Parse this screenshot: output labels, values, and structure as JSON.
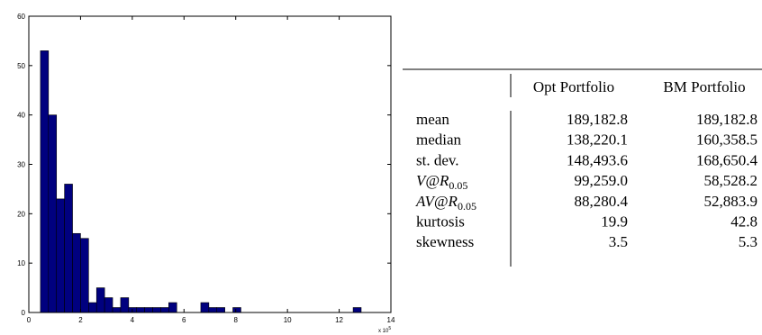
{
  "chart_data": {
    "type": "histogram",
    "bins": [
      0.45,
      0.76,
      1.07,
      1.38,
      1.69,
      2.0,
      2.31,
      2.62,
      2.93,
      3.24,
      3.55,
      3.86,
      4.17,
      4.48,
      4.79,
      5.1,
      5.41,
      5.72,
      6.03,
      6.34,
      6.65,
      6.96,
      7.27,
      7.58,
      7.89,
      8.2,
      8.51,
      8.82,
      9.13,
      9.44,
      9.75,
      10.06,
      10.37,
      10.68,
      10.99,
      11.3,
      11.61,
      11.92,
      12.23,
      12.54,
      12.85
    ],
    "counts": [
      53,
      40,
      23,
      26,
      16,
      15,
      2,
      5,
      3,
      1,
      3,
      1,
      1,
      1,
      1,
      1,
      2,
      0,
      0,
      0,
      2,
      1,
      1,
      0,
      1,
      0,
      0,
      0,
      0,
      0,
      0,
      0,
      0,
      0,
      0,
      0,
      0,
      0,
      0,
      1
    ],
    "color": "#00007f",
    "xlim": [
      0,
      14
    ],
    "xticks": [
      0,
      2,
      4,
      6,
      8,
      10,
      12,
      14
    ],
    "ylim": [
      0,
      60
    ],
    "yticks": [
      0,
      10,
      20,
      30,
      40,
      50,
      60
    ],
    "x_multiplier": {
      "base": "x 10",
      "exponent": "5"
    }
  },
  "table": {
    "header": [
      "Opt Portfolio",
      "BM Portfolio"
    ],
    "rows": [
      {
        "label": {
          "main": "mean"
        },
        "values": [
          "189,182.8",
          "189,182.8"
        ]
      },
      {
        "label": {
          "main": "median"
        },
        "values": [
          "138,220.1",
          "160,358.5"
        ]
      },
      {
        "label": {
          "main": "st. dev."
        },
        "values": [
          "148,493.6",
          "168,650.4"
        ]
      },
      {
        "label": {
          "main": "V@R",
          "sub": "0.05"
        },
        "values": [
          "99,259.0",
          "58,528.2"
        ]
      },
      {
        "label": {
          "main": "AV@R",
          "sub": "0.05"
        },
        "values": [
          "88,280.4",
          "52,883.9"
        ]
      },
      {
        "label": {
          "main": "kurtosis"
        },
        "values": [
          "19.9",
          "42.8"
        ]
      },
      {
        "label": {
          "main": "skewness"
        },
        "values": [
          "3.5",
          "5.3"
        ]
      }
    ]
  }
}
